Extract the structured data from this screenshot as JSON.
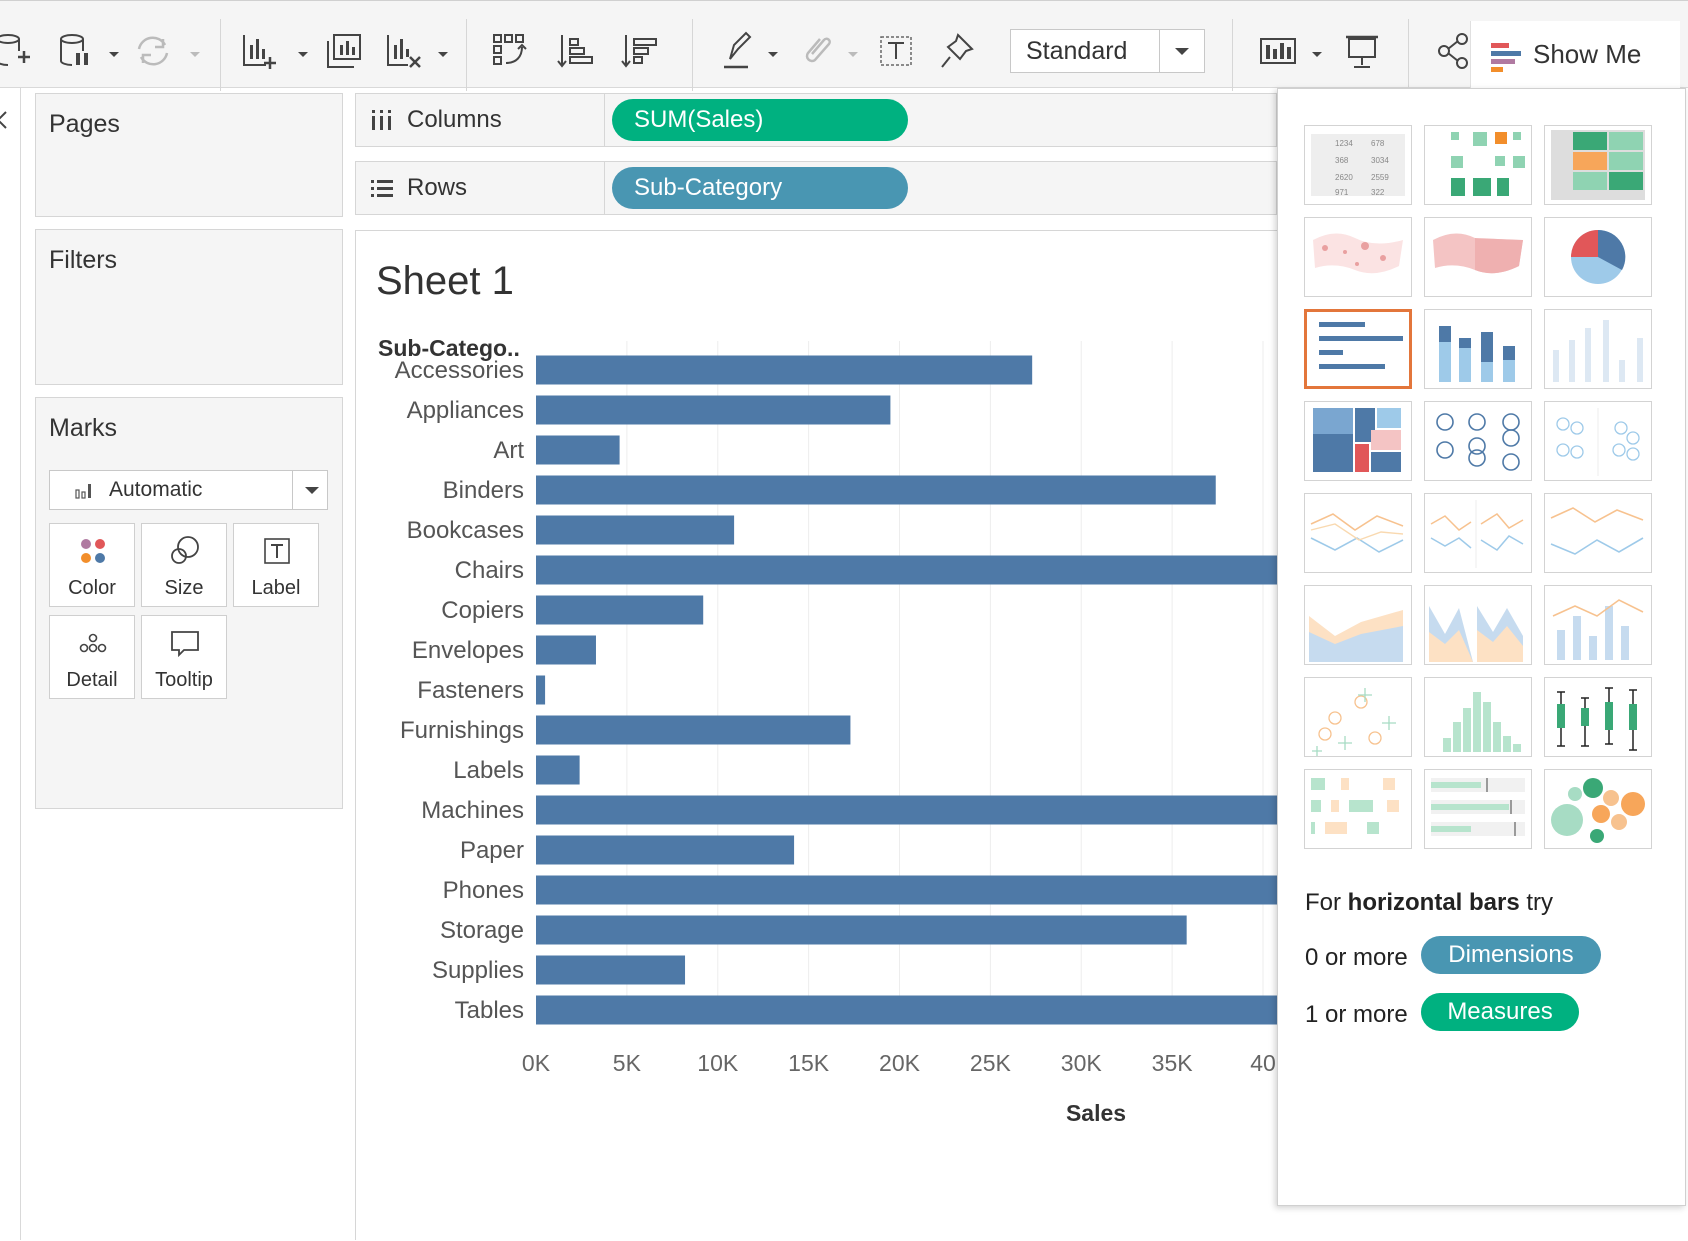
{
  "toolbar": {
    "standard_select": "Standard",
    "show_me_label": "Show Me"
  },
  "left_panel": {
    "pages_title": "Pages",
    "filters_title": "Filters",
    "marks_title": "Marks",
    "marks_type": "Automatic",
    "mark_buttons": [
      "Color",
      "Size",
      "Label",
      "Detail",
      "Tooltip"
    ]
  },
  "shelves": {
    "columns_label": "Columns",
    "columns_pill": "SUM(Sales)",
    "rows_label": "Rows",
    "rows_pill": "Sub-Category"
  },
  "colors": {
    "measure_pill": "#00b180",
    "dimension_pill": "#4996b2",
    "bar": "#4e79a7",
    "show_me_selected_border": "#e3763b"
  },
  "sheet": {
    "title": "Sheet 1"
  },
  "chart_data": {
    "type": "bar",
    "orientation": "horizontal",
    "row_header": "Sub-Catego..",
    "categories": [
      "Accessories",
      "Appliances",
      "Art",
      "Binders",
      "Bookcases",
      "Chairs",
      "Copiers",
      "Envelopes",
      "Fasteners",
      "Furnishings",
      "Labels",
      "Machines",
      "Paper",
      "Phones",
      "Storage",
      "Supplies",
      "Tables"
    ],
    "values": [
      27300,
      19500,
      4600,
      37400,
      10900,
      42000,
      9200,
      3300,
      500,
      17300,
      2400,
      42000,
      14200,
      42000,
      35800,
      8200,
      42000
    ],
    "x_ticks": [
      "0K",
      "5K",
      "10K",
      "15K",
      "20K",
      "25K",
      "30K",
      "35K",
      "40"
    ],
    "xlabel": "Sales",
    "xlim": [
      0,
      40000
    ],
    "grid": true
  },
  "show_me": {
    "thumbnails": [
      "text-table",
      "heat-map",
      "highlight-table",
      "symbol-map",
      "filled-map",
      "pie-chart",
      "horizontal-bars",
      "stacked-bars",
      "side-by-side-bars",
      "treemap",
      "circle-views",
      "side-by-side-circles",
      "lines-continuous",
      "lines-discrete",
      "dual-lines",
      "area-continuous",
      "area-discrete",
      "dual-combination",
      "scatter-plot",
      "histogram",
      "box-and-whisker",
      "gantt-chart",
      "bullet-graph",
      "packed-bubbles"
    ],
    "selected": "horizontal-bars",
    "hint_prefix": "For ",
    "hint_bold": "horizontal bars",
    "hint_suffix": " try",
    "req_dimensions_prefix": "0 or more",
    "req_dimensions_pill": "Dimensions",
    "req_measures_prefix": "1 or more",
    "req_measures_pill": "Measures"
  }
}
